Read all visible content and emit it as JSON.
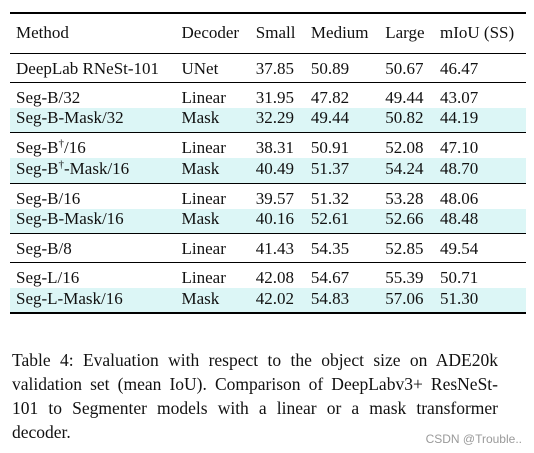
{
  "table": {
    "headers": [
      "Method",
      "Decoder",
      "Small",
      "Medium",
      "Large",
      "mIoU (SS)"
    ],
    "groups": [
      [
        {
          "method": "DeepLab RNeSt-101",
          "sup": "",
          "method_suffix": "",
          "decoder": "UNet",
          "small": "37.85",
          "medium": "50.89",
          "large": "50.67",
          "miou": "46.47",
          "highlight": false
        }
      ],
      [
        {
          "method": "Seg-B/32",
          "sup": "",
          "method_suffix": "",
          "decoder": "Linear",
          "small": "31.95",
          "medium": "47.82",
          "large": "49.44",
          "miou": "43.07",
          "highlight": false
        },
        {
          "method": "Seg-B-Mask/32",
          "sup": "",
          "method_suffix": "",
          "decoder": "Mask",
          "small": "32.29",
          "medium": "49.44",
          "large": "50.82",
          "miou": "44.19",
          "highlight": true
        }
      ],
      [
        {
          "method": "Seg-B",
          "sup": "†",
          "method_suffix": "/16",
          "decoder": "Linear",
          "small": "38.31",
          "medium": "50.91",
          "large": "52.08",
          "miou": "47.10",
          "highlight": false
        },
        {
          "method": "Seg-B",
          "sup": "†",
          "method_suffix": "-Mask/16",
          "decoder": "Mask",
          "small": "40.49",
          "medium": "51.37",
          "large": "54.24",
          "miou": "48.70",
          "highlight": true
        }
      ],
      [
        {
          "method": "Seg-B/16",
          "sup": "",
          "method_suffix": "",
          "decoder": "Linear",
          "small": "39.57",
          "medium": "51.32",
          "large": "53.28",
          "miou": "48.06",
          "highlight": false
        },
        {
          "method": "Seg-B-Mask/16",
          "sup": "",
          "method_suffix": "",
          "decoder": "Mask",
          "small": "40.16",
          "medium": "52.61",
          "large": "52.66",
          "miou": "48.48",
          "highlight": true
        }
      ],
      [
        {
          "method": "Seg-B/8",
          "sup": "",
          "method_suffix": "",
          "decoder": "Linear",
          "small": "41.43",
          "medium": "54.35",
          "large": "52.85",
          "miou": "49.54",
          "highlight": false
        }
      ],
      [
        {
          "method": "Seg-L/16",
          "sup": "",
          "method_suffix": "",
          "decoder": "Linear",
          "small": "42.08",
          "medium": "54.67",
          "large": "55.39",
          "miou": "50.71",
          "highlight": false
        },
        {
          "method": "Seg-L-Mask/16",
          "sup": "",
          "method_suffix": "",
          "decoder": "Mask",
          "small": "42.02",
          "medium": "54.83",
          "large": "57.06",
          "miou": "51.30",
          "highlight": true
        }
      ]
    ],
    "highlight_color": "#dcf6f6"
  },
  "caption": "Table 4:  Evaluation with respect to the object size on ADE20k validation set (mean IoU). Comparison of DeepLabv3+ ResNeSt-101 to Segmenter models with a linear or a mask transformer decoder.",
  "watermark": "CSDN @Trouble.."
}
